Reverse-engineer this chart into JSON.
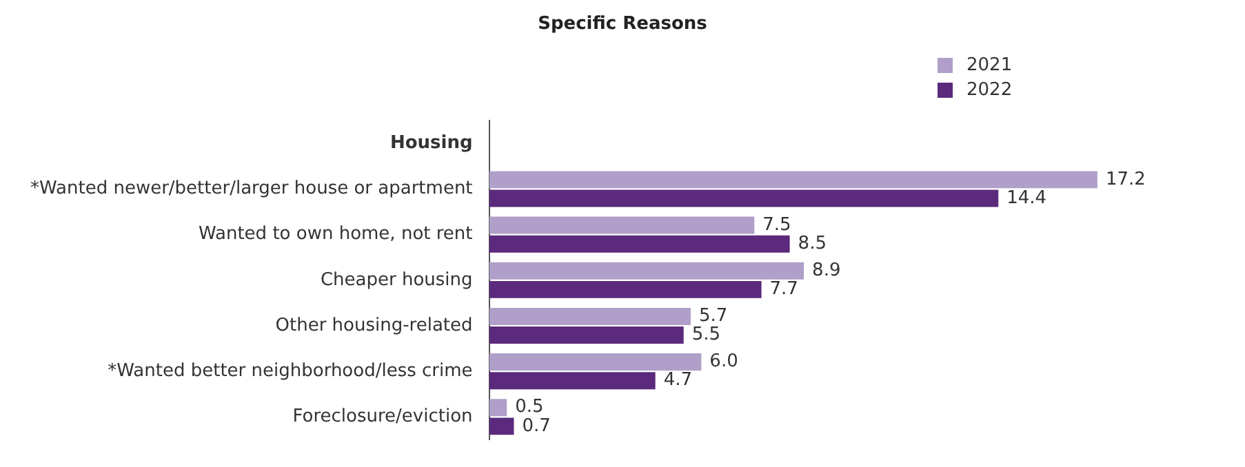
{
  "chart_data": {
    "type": "bar",
    "orientation": "horizontal",
    "title": "Specific Reasons",
    "categories": [
      "Housing",
      "*Wanted newer/better/larger house or apartment",
      "Wanted to own home, not rent",
      "Cheaper housing",
      "Other housing-related",
      "*Wanted better neighborhood/less crime",
      "Foreclosure/eviction"
    ],
    "series": [
      {
        "name": "2021",
        "color": "#b09fc9",
        "values": [
          null,
          17.2,
          7.5,
          8.9,
          5.7,
          6.0,
          0.5
        ],
        "value_labels": [
          null,
          "17.2",
          "7.5",
          "8.9",
          "5.7",
          "6.0",
          "0.5"
        ]
      },
      {
        "name": "2022",
        "color": "#5b2a7c",
        "values": [
          null,
          14.4,
          8.5,
          7.7,
          5.5,
          4.7,
          0.7
        ],
        "value_labels": [
          null,
          "14.4",
          "8.5",
          "7.7",
          "5.5",
          "4.7",
          "0.7"
        ]
      }
    ],
    "legend": "top right",
    "grid": false,
    "tick_labels": "y"
  }
}
